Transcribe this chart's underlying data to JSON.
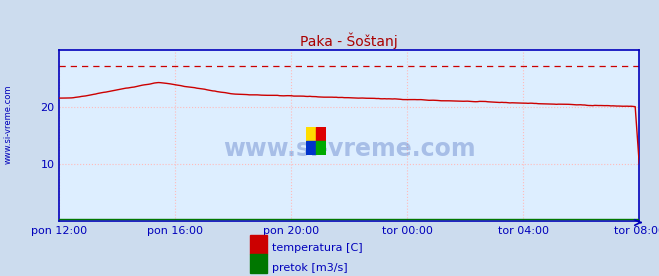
{
  "title": "Paka - Šoštanj",
  "title_color": "#aa0000",
  "bg_color": "#ccdcee",
  "plot_bg_color": "#ddeeff",
  "grid_color": "#ffbbbb",
  "axis_color": "#0000bb",
  "text_color": "#0000bb",
  "watermark": "www.si-vreme.com",
  "ylabel_left": "www.si-vreme.com",
  "ylim": [
    0,
    30
  ],
  "yticks": [
    10,
    20
  ],
  "xtick_labels": [
    "pon 12:00",
    "pon 16:00",
    "pon 20:00",
    "tor 00:00",
    "tor 04:00",
    "tor 08:00"
  ],
  "n_points": 288,
  "temp_color": "#cc0000",
  "pretok_color": "#007700",
  "dashed_line_value": 27.2,
  "dashed_line_color": "#cc0000",
  "legend_labels": [
    "temperatura [C]",
    "pretok [m3/s]"
  ],
  "legend_colors": [
    "#cc0000",
    "#007700"
  ],
  "watermark_color": "#4466bb",
  "watermark_alpha": 0.35
}
